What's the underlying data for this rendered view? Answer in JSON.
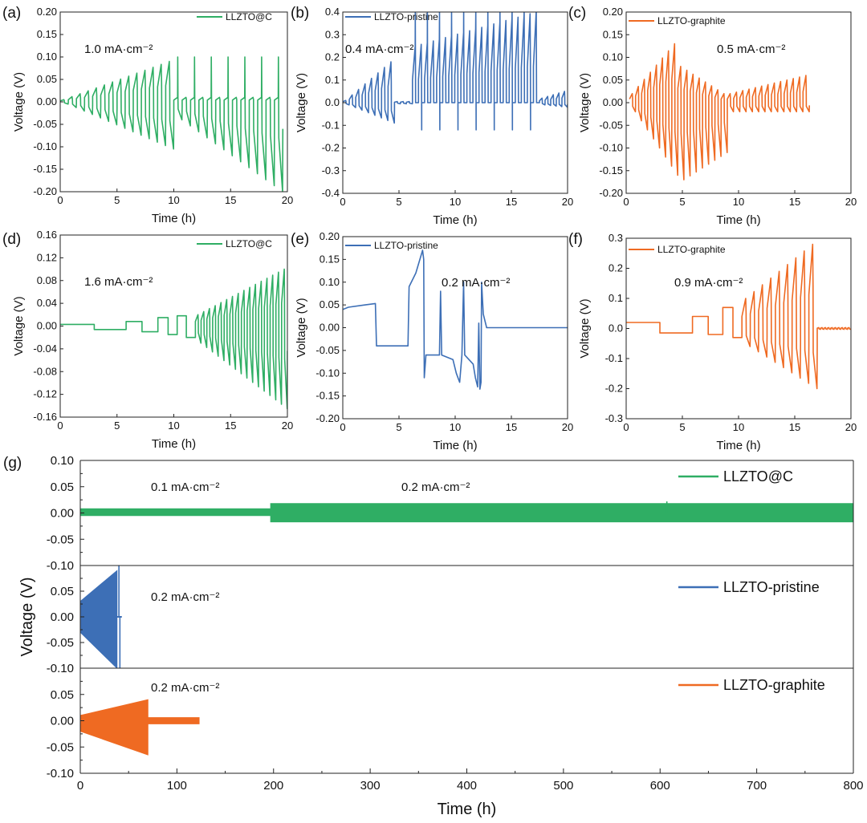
{
  "colors": {
    "green": "#2fae64",
    "blue": "#3d6fb6",
    "orange": "#ef6a22"
  },
  "chart_data": [
    {
      "id": "a",
      "panel_label": "(a)",
      "type": "line",
      "title": "",
      "xlabel": "Time (h)",
      "ylabel": "Voltage (V)",
      "xlim": [
        0,
        20
      ],
      "ylim": [
        -0.2,
        0.2
      ],
      "xticks": [
        "0",
        "5",
        "10",
        "15",
        "20"
      ],
      "yticks": [
        "-0.20",
        "-0.15",
        "-0.10",
        "-0.05",
        "0.00",
        "0.05",
        "0.10",
        "0.15",
        "0.20"
      ],
      "legend": "LLZTO@C",
      "color": "green",
      "annotation": "1.0 mA·cm⁻²",
      "series": [
        {
          "name": "LLZTO@C",
          "period_h": 0.74,
          "segments": [
            {
              "t0": 0,
              "t1": 10,
              "vp0": 0.005,
              "vp1": 0.09,
              "vn0": -0.005,
              "vn1": -0.105
            },
            {
              "t0": 10,
              "t1": 19.6,
              "vp0": 0.01,
              "vp1": 0.01,
              "vn0": -0.04,
              "vn1": -0.2,
              "spike": 0.1
            }
          ]
        }
      ]
    },
    {
      "id": "b",
      "panel_label": "(b)",
      "type": "line",
      "title": "",
      "xlabel": "Time (h)",
      "ylabel": "Voltage (V)",
      "xlim": [
        0,
        20
      ],
      "ylim": [
        -0.4,
        0.4
      ],
      "xticks": [
        "0",
        "5",
        "10",
        "15",
        "20"
      ],
      "yticks": [
        "-0.4",
        "-0.3",
        "-0.2",
        "-0.1",
        "0.0",
        "0.1",
        "0.2",
        "0.3",
        "0.4"
      ],
      "legend": "LLZTO-pristine",
      "color": "blue",
      "annotation": "0.4 mA·cm⁻²",
      "series": [
        {
          "name": "LLZTO-pristine",
          "period_h": 0.55,
          "segments": [
            {
              "t0": 0,
              "t1": 4.6,
              "vp0": 0.01,
              "vp1": 0.18,
              "vn0": -0.01,
              "vn1": -0.09
            },
            {
              "t0": 4.6,
              "t1": 6.2,
              "vp0": 0.005,
              "vp1": 0.005,
              "vn0": -0.005,
              "vn1": -0.005
            },
            {
              "t0": 6.2,
              "t1": 17.5,
              "vp0": 0.25,
              "vp1": 0.4,
              "vn0": 0.0,
              "vn1": 0.0,
              "spike": 0.4,
              "neg_spike": -0.12
            },
            {
              "t0": 17.5,
              "t1": 20,
              "vp0": 0.02,
              "vp1": 0.05,
              "vn0": -0.01,
              "vn1": -0.02
            }
          ]
        }
      ]
    },
    {
      "id": "c",
      "panel_label": "(c)",
      "type": "line",
      "title": "",
      "xlabel": "Time (h)",
      "ylabel": "Voltage (V)",
      "xlim": [
        0,
        20
      ],
      "ylim": [
        -0.2,
        0.2
      ],
      "xticks": [
        "0",
        "5",
        "10",
        "15",
        "20"
      ],
      "yticks": [
        "-0.20",
        "-0.15",
        "-0.10",
        "-0.05",
        "0.00",
        "0.05",
        "0.10",
        "0.15",
        "0.20"
      ],
      "legend": "LLZTO-graphite",
      "color": "orange",
      "annotation": "0.5 mA·cm⁻²",
      "series": [
        {
          "name": "LLZTO-graphite",
          "period_h": 0.55,
          "segments": [
            {
              "t0": 0.3,
              "t1": 4.6,
              "vp0": 0.02,
              "vp1": 0.13,
              "vn0": -0.02,
              "vn1": -0.16
            },
            {
              "t0": 4.6,
              "t1": 9.0,
              "vp0": 0.08,
              "vp1": 0.02,
              "vn0": -0.17,
              "vn1": -0.11
            },
            {
              "t0": 9.0,
              "t1": 16.3,
              "vp0": 0.02,
              "vp1": 0.06,
              "vn0": -0.02,
              "vn1": -0.02
            }
          ]
        }
      ]
    },
    {
      "id": "d",
      "panel_label": "(d)",
      "type": "line",
      "title": "",
      "xlabel": "Time (h)",
      "ylabel": "Voltage (V)",
      "xlim": [
        0,
        20
      ],
      "ylim": [
        -0.16,
        0.16
      ],
      "xticks": [
        "0",
        "5",
        "10",
        "15",
        "20"
      ],
      "yticks": [
        "-0.16",
        "-0.12",
        "-0.08",
        "-0.04",
        "0.00",
        "0.04",
        "0.08",
        "0.12",
        "0.16"
      ],
      "legend": "LLZTO@C",
      "color": "green",
      "annotation": "1.6 mA·cm⁻²",
      "series": [
        {
          "name": "LLZTO@C",
          "steps": [
            {
              "t0": 0,
              "t1": 3,
              "v": 0.003
            },
            {
              "t0": 3,
              "t1": 5.8,
              "v": -0.006
            },
            {
              "t0": 5.8,
              "t1": 7.2,
              "v": 0.008
            },
            {
              "t0": 7.2,
              "t1": 8.6,
              "v": -0.01
            },
            {
              "t0": 8.6,
              "t1": 9.5,
              "v": 0.015
            },
            {
              "t0": 9.5,
              "t1": 10.3,
              "v": -0.015
            },
            {
              "t0": 10.3,
              "t1": 11.1,
              "v": 0.018
            },
            {
              "t0": 11.1,
              "t1": 11.9,
              "v": -0.02
            }
          ],
          "segments": [
            {
              "t0": 11.9,
              "t1": 20,
              "vp0": 0.02,
              "vp1": 0.1,
              "vn0": -0.03,
              "vn1": -0.145,
              "period_h": 0.5
            }
          ]
        }
      ]
    },
    {
      "id": "e",
      "panel_label": "(e)",
      "type": "line",
      "title": "",
      "xlabel": "Time (h)",
      "ylabel": "Voltage (V)",
      "xlim": [
        0,
        20
      ],
      "ylim": [
        -0.2,
        0.2
      ],
      "xticks": [
        "0",
        "5",
        "10",
        "15",
        "20"
      ],
      "yticks": [
        "-0.20",
        "-0.15",
        "-0.10",
        "-0.05",
        "0.00",
        "0.05",
        "0.10",
        "0.15",
        "0.20"
      ],
      "legend": "LLZTO-pristine",
      "color": "blue",
      "annotation": "0.2 mA·cm⁻²",
      "series": [
        {
          "name": "LLZTO-pristine",
          "points": [
            [
              0,
              0.04
            ],
            [
              0.5,
              0.045
            ],
            [
              2,
              0.05
            ],
            [
              2.9,
              0.053
            ],
            [
              3.0,
              -0.04
            ],
            [
              3.2,
              -0.04
            ],
            [
              5.8,
              -0.04
            ],
            [
              5.9,
              0.09
            ],
            [
              6.5,
              0.12
            ],
            [
              7.1,
              0.17
            ],
            [
              7.2,
              0.15
            ],
            [
              7.25,
              -0.11
            ],
            [
              7.4,
              -0.06
            ],
            [
              8.6,
              -0.06
            ],
            [
              8.7,
              0.08
            ],
            [
              8.8,
              -0.06
            ],
            [
              9.8,
              -0.07
            ],
            [
              10.1,
              -0.1
            ],
            [
              10.4,
              -0.12
            ],
            [
              10.6,
              -0.06
            ],
            [
              10.75,
              0.1
            ],
            [
              10.85,
              -0.06
            ],
            [
              11.6,
              -0.08
            ],
            [
              11.8,
              -0.11
            ],
            [
              12.0,
              -0.13
            ],
            [
              12.1,
              0.01
            ],
            [
              12.2,
              -0.135
            ],
            [
              12.3,
              -0.12
            ],
            [
              12.35,
              0.1
            ],
            [
              12.5,
              0.03
            ],
            [
              12.8,
              0.0
            ],
            [
              20,
              0.0
            ]
          ]
        }
      ]
    },
    {
      "id": "f",
      "panel_label": "(f)",
      "type": "line",
      "title": "",
      "xlabel": "Time (h)",
      "ylabel": "Voltage (V)",
      "xlim": [
        0,
        20
      ],
      "ylim": [
        -0.3,
        0.3
      ],
      "xticks": [
        "0",
        "5",
        "10",
        "15",
        "20"
      ],
      "yticks": [
        "-0.3",
        "-0.2",
        "-0.1",
        "0.0",
        "0.1",
        "0.2",
        "0.3"
      ],
      "legend": "LLZTO-graphite",
      "color": "orange",
      "annotation": "0.9 mA·cm⁻²",
      "series": [
        {
          "name": "LLZTO-graphite",
          "steps": [
            {
              "t0": 0,
              "t1": 3,
              "v": 0.02
            },
            {
              "t0": 3,
              "t1": 5.9,
              "v": -0.015
            },
            {
              "t0": 5.9,
              "t1": 7.3,
              "v": 0.04
            },
            {
              "t0": 7.3,
              "t1": 8.6,
              "v": -0.02
            },
            {
              "t0": 8.6,
              "t1": 9.5,
              "v": 0.07
            },
            {
              "t0": 9.5,
              "t1": 10.3,
              "v": -0.03
            }
          ],
          "segments": [
            {
              "t0": 10.3,
              "t1": 17.0,
              "vp0": 0.1,
              "vp1": 0.28,
              "vn0": -0.06,
              "vn1": -0.2,
              "period_h": 0.76
            },
            {
              "t0": 17.0,
              "t1": 20,
              "vp0": 0.003,
              "vp1": 0.003,
              "vn0": -0.003,
              "vn1": -0.003,
              "period_h": 0.3
            }
          ]
        }
      ]
    },
    {
      "id": "g",
      "panel_label": "(g)",
      "type": "line",
      "xlabel": "Time (h)",
      "ylabel": "Voltage (V)",
      "xlim": [
        0,
        800
      ],
      "xticks": [
        "0",
        "100",
        "200",
        "300",
        "400",
        "500",
        "600",
        "700",
        "800"
      ],
      "subplots": [
        {
          "name": "LLZTO@C",
          "color": "green",
          "ylim": [
            -0.1,
            0.1
          ],
          "yticks": [
            "-0.10",
            "-0.05",
            "0.00",
            "0.05",
            "0.10"
          ],
          "annotations": [
            "0.1 mA·cm⁻²",
            "0.2 mA·cm⁻²"
          ],
          "bands": [
            {
              "t0": 0,
              "t1": 197,
              "vmin": -0.005,
              "vmax": 0.008
            },
            {
              "t0": 197,
              "t1": 800,
              "vmin": -0.017,
              "vmax": 0.018
            }
          ],
          "spikes": [
            {
              "t": 607,
              "v": 0.022
            }
          ]
        },
        {
          "name": "LLZTO-pristine",
          "color": "blue",
          "ylim": [
            -0.1,
            0.1
          ],
          "yticks": [
            "-0.10",
            "-0.05",
            "0.00",
            "0.05"
          ],
          "annotations": [
            "0.2 mA·cm⁻²"
          ],
          "bands": [
            {
              "t0": 0,
              "t1": 38,
              "vmin_start": -0.03,
              "vmax_start": 0.03,
              "vmin_end": -0.1,
              "vmax_end": 0.09
            }
          ],
          "spikes": [
            {
              "t": 40,
              "v": 0.1
            },
            {
              "t": 41,
              "v": -0.1
            }
          ],
          "tail": {
            "t0": 38,
            "t1": 43,
            "v": 0.0
          }
        },
        {
          "name": "LLZTO-graphite",
          "color": "orange",
          "ylim": [
            -0.1,
            0.1
          ],
          "yticks": [
            "-0.10",
            "-0.05",
            "0.00",
            "0.05"
          ],
          "annotations": [
            "0.2 mA·cm⁻²"
          ],
          "bands": [
            {
              "t0": 0,
              "t1": 70,
              "vmin_start": -0.02,
              "vmax_start": 0.01,
              "vmin_end": -0.065,
              "vmax_end": 0.04
            },
            {
              "t0": 70,
              "t1": 123,
              "vmin": -0.006,
              "vmax": 0.006
            }
          ]
        }
      ]
    }
  ]
}
